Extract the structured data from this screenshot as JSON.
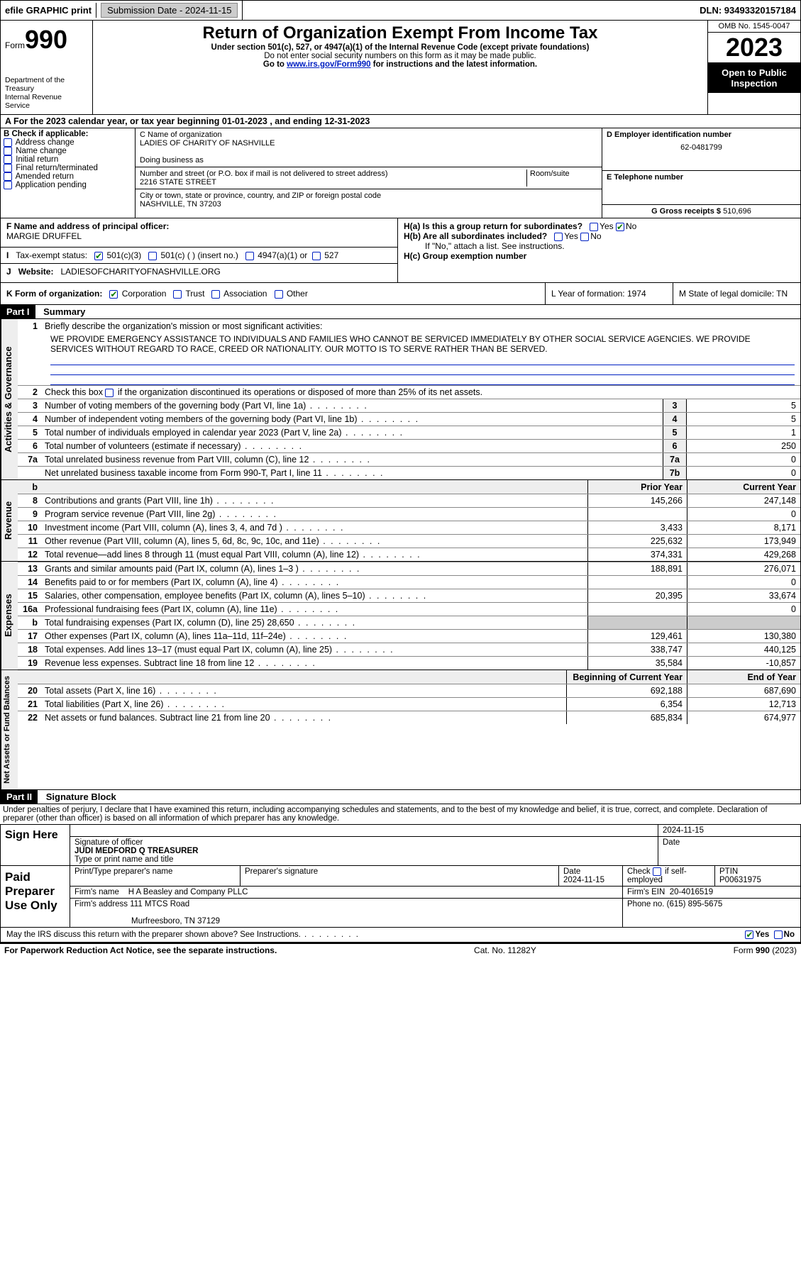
{
  "header": {
    "efile": "efile GRAPHIC print",
    "submission": "Submission Date - 2024-11-15",
    "dln": "DLN: 93493320157184"
  },
  "formbox": {
    "form": "Form",
    "num": "990",
    "dept": "Department of the Treasury",
    "irs": "Internal Revenue Service"
  },
  "titlebox": {
    "main": "Return of Organization Exempt From Income Tax",
    "sub1": "Under section 501(c), 527, or 4947(a)(1) of the Internal Revenue Code (except private foundations)",
    "sub2": "Do not enter social security numbers on this form as it may be made public.",
    "sub3a": "Go to ",
    "sub3link": "www.irs.gov/Form990",
    "sub3b": " for instructions and the latest information."
  },
  "yearbox": {
    "omb": "OMB No. 1545-0047",
    "year": "2023",
    "inspection": "Open to Public Inspection"
  },
  "sectionA": "A For the 2023 calendar year, or tax year beginning 01-01-2023   , and ending 12-31-2023",
  "colB": {
    "title": "B Check if applicable:",
    "items": [
      "Address change",
      "Name change",
      "Initial return",
      "Final return/terminated",
      "Amended return",
      "Application pending"
    ]
  },
  "colC": {
    "nameLabel": "C Name of organization",
    "name": "LADIES OF CHARITY OF NASHVILLE",
    "dba": "Doing business as",
    "streetLabel": "Number and street (or P.O. box if mail is not delivered to street address)",
    "street": "2216 STATE STREET",
    "room": "Room/suite",
    "cityLabel": "City or town, state or province, country, and ZIP or foreign postal code",
    "city": "NASHVILLE, TN  37203"
  },
  "colD": {
    "einLabel": "D Employer identification number",
    "ein": "62-0481799",
    "phoneLabel": "E Telephone number",
    "grossLabel": "G Gross receipts $ ",
    "gross": "510,696"
  },
  "colF": {
    "label": "F Name and address of principal officer:",
    "name": "MARGIE DRUFFEL",
    "taxExempt": "Tax-exempt status:",
    "opt501c3": "501(c)(3)",
    "opt501c": "501(c) (  ) (insert no.)",
    "opt4947": "4947(a)(1) or",
    "opt527": "527",
    "websiteLabel": "Website:",
    "website": "LADIESOFCHARITYOFNASHVILLE.ORG",
    "formOrg": "K Form of organization:",
    "corp": "Corporation",
    "trust": "Trust",
    "assoc": "Association",
    "other": "Other"
  },
  "colH": {
    "ha": "H(a)  Is this a group return for subordinates?",
    "hb": "H(b)  Are all subordinates included?",
    "hbNote": "If \"No,\" attach a list. See instructions.",
    "hc": "H(c)  Group exemption number",
    "yes": "Yes",
    "no": "No",
    "yearForm": "L Year of formation: 1974",
    "domicile": "M State of legal domicile: TN"
  },
  "part1": {
    "header": "Part I",
    "title": "Summary",
    "sections": {
      "gov": "Activities & Governance",
      "rev": "Revenue",
      "exp": "Expenses",
      "net": "Net Assets or Fund Balances"
    },
    "line1": "Briefly describe the organization's mission or most significant activities:",
    "mission": "WE PROVIDE EMERGENCY ASSISTANCE TO INDIVIDUALS AND FAMILIES WHO CANNOT BE SERVICED IMMEDIATELY BY OTHER SOCIAL SERVICE AGENCIES. WE PROVIDE SERVICES WITHOUT REGARD TO RACE, CREED OR NATIONALITY. OUR MOTTO IS TO SERVE RATHER THAN BE SERVED.",
    "line2": "Check this box         if the organization discontinued its operations or disposed of more than 25% of its net assets.",
    "priorYear": "Prior Year",
    "currentYear": "Current Year",
    "begYear": "Beginning of Current Year",
    "endYear": "End of Year",
    "lines": [
      {
        "n": "3",
        "t": "Number of voting members of the governing body (Part VI, line 1a)",
        "b": "3",
        "v": "5"
      },
      {
        "n": "4",
        "t": "Number of independent voting members of the governing body (Part VI, line 1b)",
        "b": "4",
        "v": "5"
      },
      {
        "n": "5",
        "t": "Total number of individuals employed in calendar year 2023 (Part V, line 2a)",
        "b": "5",
        "v": "1"
      },
      {
        "n": "6",
        "t": "Total number of volunteers (estimate if necessary)",
        "b": "6",
        "v": "250"
      },
      {
        "n": "7a",
        "t": "Total unrelated business revenue from Part VIII, column (C), line 12",
        "b": "7a",
        "v": "0"
      },
      {
        "n": "",
        "t": "Net unrelated business taxable income from Form 990-T, Part I, line 11",
        "b": "7b",
        "v": "0"
      }
    ],
    "revLines": [
      {
        "n": "8",
        "t": "Contributions and grants (Part VIII, line 1h)",
        "p": "145,266",
        "c": "247,148"
      },
      {
        "n": "9",
        "t": "Program service revenue (Part VIII, line 2g)",
        "p": "",
        "c": "0"
      },
      {
        "n": "10",
        "t": "Investment income (Part VIII, column (A), lines 3, 4, and 7d )",
        "p": "3,433",
        "c": "8,171"
      },
      {
        "n": "11",
        "t": "Other revenue (Part VIII, column (A), lines 5, 6d, 8c, 9c, 10c, and 11e)",
        "p": "225,632",
        "c": "173,949"
      },
      {
        "n": "12",
        "t": "Total revenue—add lines 8 through 11 (must equal Part VIII, column (A), line 12)",
        "p": "374,331",
        "c": "429,268"
      }
    ],
    "expLines": [
      {
        "n": "13",
        "t": "Grants and similar amounts paid (Part IX, column (A), lines 1–3 )",
        "p": "188,891",
        "c": "276,071"
      },
      {
        "n": "14",
        "t": "Benefits paid to or for members (Part IX, column (A), line 4)",
        "p": "",
        "c": "0"
      },
      {
        "n": "15",
        "t": "Salaries, other compensation, employee benefits (Part IX, column (A), lines 5–10)",
        "p": "20,395",
        "c": "33,674"
      },
      {
        "n": "16a",
        "t": "Professional fundraising fees (Part IX, column (A), line 11e)",
        "p": "",
        "c": "0"
      },
      {
        "n": "b",
        "t": "Total fundraising expenses (Part IX, column (D), line 25) 28,650",
        "p": "shaded",
        "c": "shaded"
      },
      {
        "n": "17",
        "t": "Other expenses (Part IX, column (A), lines 11a–11d, 11f–24e)",
        "p": "129,461",
        "c": "130,380"
      },
      {
        "n": "18",
        "t": "Total expenses. Add lines 13–17 (must equal Part IX, column (A), line 25)",
        "p": "338,747",
        "c": "440,125"
      },
      {
        "n": "19",
        "t": "Revenue less expenses. Subtract line 18 from line 12",
        "p": "35,584",
        "c": "-10,857"
      }
    ],
    "netLines": [
      {
        "n": "20",
        "t": "Total assets (Part X, line 16)",
        "p": "692,188",
        "c": "687,690"
      },
      {
        "n": "21",
        "t": "Total liabilities (Part X, line 26)",
        "p": "6,354",
        "c": "12,713"
      },
      {
        "n": "22",
        "t": "Net assets or fund balances. Subtract line 21 from line 20",
        "p": "685,834",
        "c": "674,977"
      }
    ]
  },
  "part2": {
    "header": "Part II",
    "title": "Signature Block",
    "perjury": "Under penalties of perjury, I declare that I have examined this return, including accompanying schedules and statements, and to the best of my knowledge and belief, it is true, correct, and complete. Declaration of preparer (other than officer) is based on all information of which preparer has any knowledge.",
    "signHere": "Sign Here",
    "sigOfficer": "Signature of officer",
    "officerName": "JUDI MEDFORD Q  TREASURER",
    "typePrint": "Type or print name and title",
    "date": "Date",
    "dateVal": "2024-11-15",
    "paidPrep": "Paid Preparer Use Only",
    "prepName": "Print/Type preparer's name",
    "prepSig": "Preparer's signature",
    "checkSelf": "Check         if self-employed",
    "ptin": "PTIN",
    "ptinVal": "P00631975",
    "firmName": "Firm's name",
    "firmNameVal": "H A Beasley and Company PLLC",
    "firmEin": "Firm's EIN",
    "firmEinVal": "20-4016519",
    "firmAddr": "Firm's address",
    "firmAddrVal": "111 MTCS Road",
    "firmCity": "Murfreesboro, TN  37129",
    "phone": "Phone no.",
    "phoneVal": "(615) 895-5675",
    "discuss": "May the IRS discuss this return with the preparer shown above? See Instructions."
  },
  "footer": {
    "paperwork": "For Paperwork Reduction Act Notice, see the separate instructions.",
    "cat": "Cat. No. 11282Y",
    "form": "Form 990 (2023)"
  }
}
